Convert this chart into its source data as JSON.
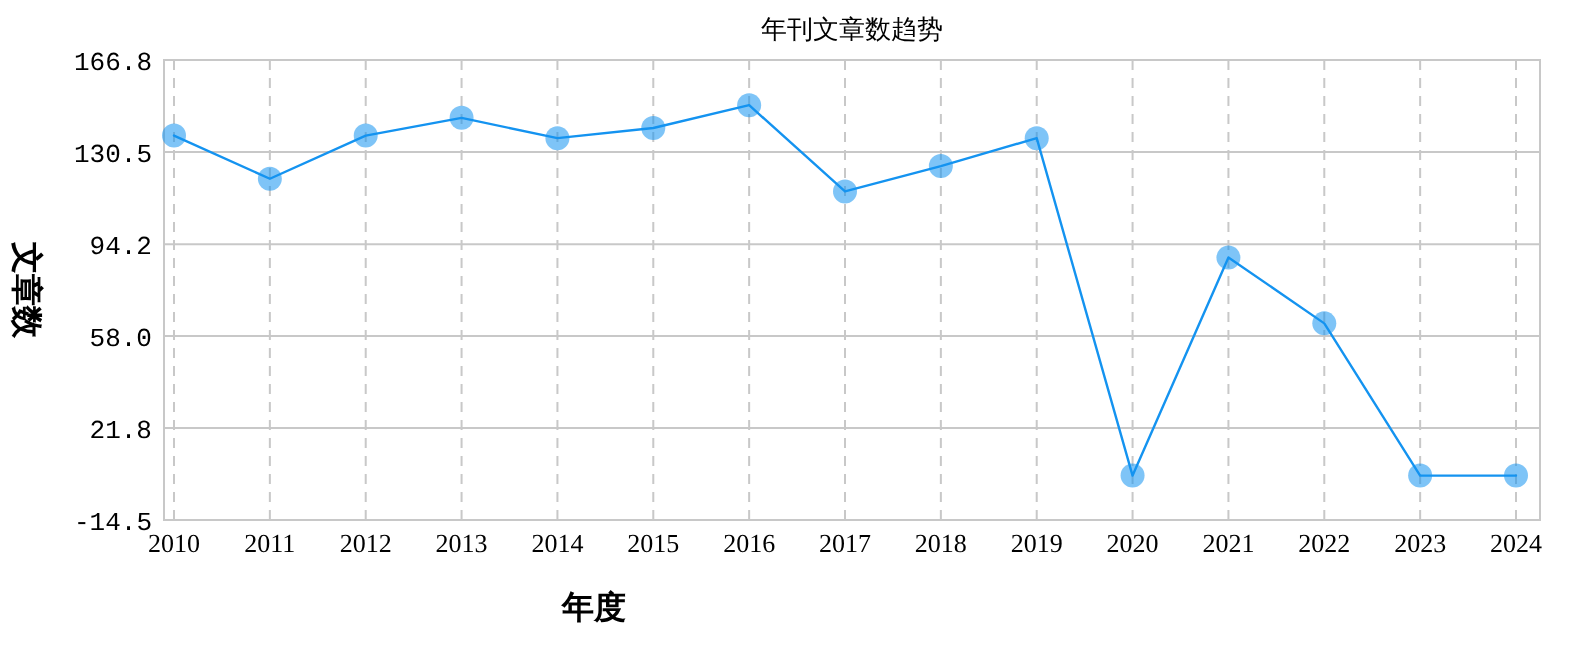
{
  "chart_data": {
    "type": "line",
    "title": "年刊文章数趋势",
    "xlabel": "年度",
    "ylabel": "文章数",
    "categories": [
      "2010",
      "2011",
      "2012",
      "2013",
      "2014",
      "2015",
      "2016",
      "2017",
      "2018",
      "2019",
      "2020",
      "2021",
      "2022",
      "2023",
      "2024"
    ],
    "series": [
      {
        "color": "#1493f0",
        "values": [
          137,
          120,
          137,
          144,
          136,
          140,
          149,
          115,
          125,
          136,
          3,
          89,
          63,
          3,
          3
        ]
      }
    ],
    "ylim": [
      -14.5,
      166.8
    ],
    "yticks": [
      {
        "value": -14.5,
        "label": "-14.5"
      },
      21.8,
      {
        "value": 58.0,
        "label": "58.0"
      },
      94.2,
      130.5,
      166.8
    ],
    "grid": true,
    "marker": "circle",
    "line_style": "solid"
  }
}
